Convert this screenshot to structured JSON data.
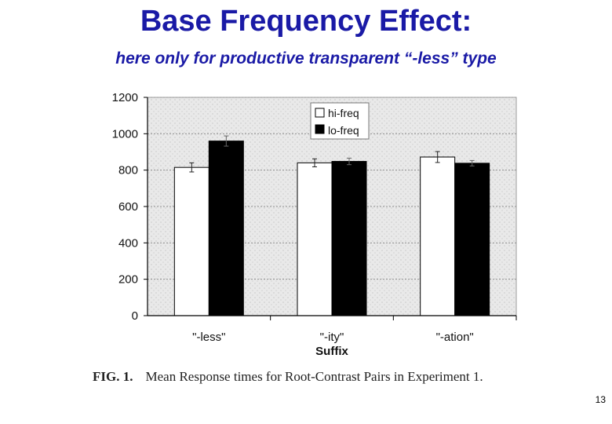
{
  "slide": {
    "title": "Base Frequency Effect:",
    "subtitle": "here only for productive transparent “-less” type",
    "page_number": "13"
  },
  "caption": {
    "label": "FIG. 1.",
    "text": "Mean Response times for Root-Contrast Pairs in Experiment 1."
  },
  "colors": {
    "title": "#1a1aa6",
    "hi_freq": "#ffffff",
    "lo_freq": "#000000",
    "plot_background": "#e9e9e9"
  },
  "chart_data": {
    "type": "bar",
    "categories": [
      "\"-less\"",
      "\"-ity\"",
      "\"-ation\""
    ],
    "series": [
      {
        "name": "hi-freq",
        "values": [
          815,
          840,
          872
        ],
        "errors": [
          25,
          22,
          30
        ]
      },
      {
        "name": "lo-freq",
        "values": [
          960,
          848,
          838
        ],
        "errors": [
          28,
          18,
          15
        ]
      }
    ],
    "xlabel": "Suffix",
    "ylabel": "",
    "ylim": [
      0,
      1200
    ],
    "yticks": [
      "0",
      "200",
      "400",
      "600",
      "800",
      "1000",
      "1200"
    ],
    "grid": true,
    "legend_position": "top-right"
  }
}
